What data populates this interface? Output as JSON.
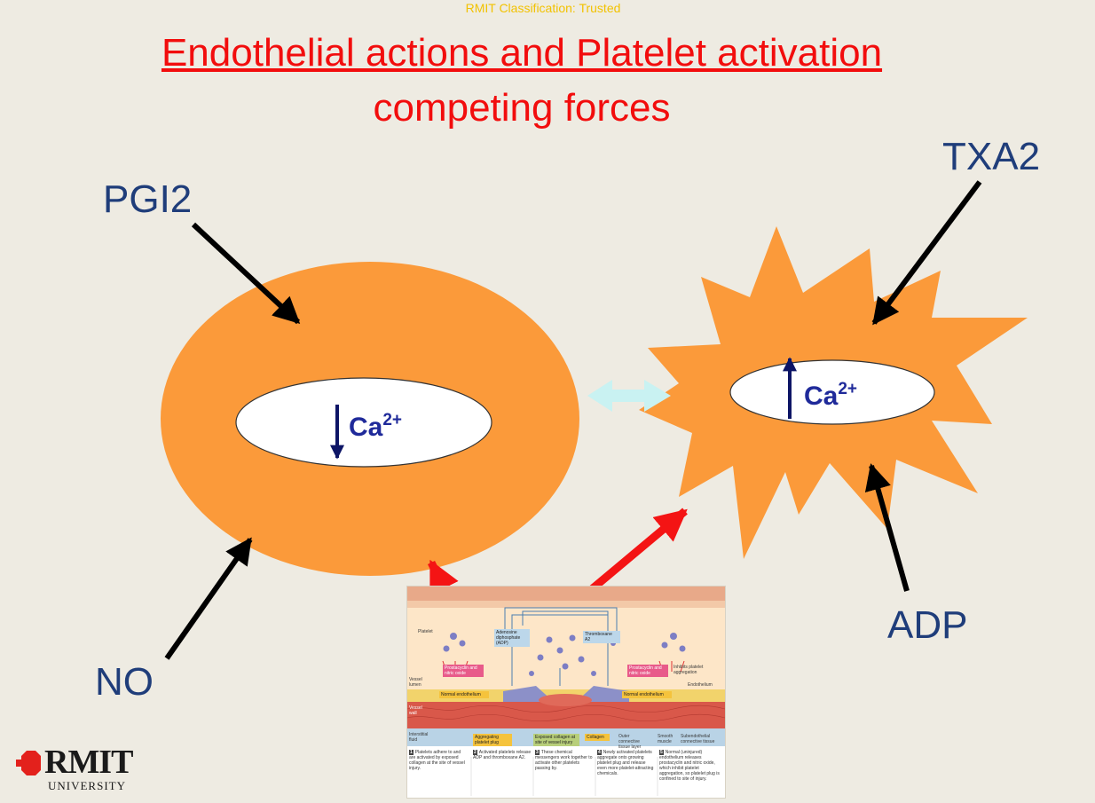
{
  "classification": "RMIT Classification: Trusted",
  "title": "Endothelial actions and Platelet activation",
  "subtitle": "competing  forces",
  "labels": {
    "pgi2": "PGI2",
    "txa2": "TXA2",
    "no": "NO",
    "adp": "ADP"
  },
  "cells": {
    "left": {
      "ion": "Ca",
      "charge": "2+",
      "direction": "down"
    },
    "right": {
      "ion": "Ca",
      "charge": "2+",
      "direction": "up"
    }
  },
  "inset": {
    "platelet": "Platelet",
    "adp": "Adenosine diphosphate (ADP)",
    "thromboxane": "Thromboxane A2",
    "prostacyclin_left": "Prostacyclin and nitric oxide",
    "prostacyclin_right": "Prostacyclin and nitric oxide",
    "inhibits": "Inhibits platelet aggregation",
    "vessel_lumen": "Vessel lumen",
    "endothelium": "Endothelium",
    "normal_endothelium_left": "Normal endothelium",
    "normal_endothelium_right": "Normal endothelium",
    "vessel_wall": "Vessel wall",
    "interstitial": "Interstitial fluid",
    "aggregating": "Aggregating platelet plug",
    "exposed": "Exposed collagen at site of vessel injury",
    "collagen": "Collagen",
    "outer": "Outer connective tissue layer",
    "smooth": "Smooth muscle",
    "subendothelial": "Subendothelial connective tissue",
    "steps": [
      {
        "n": "1",
        "text": "Platelets adhere to and are activated by exposed collagen at the site of vessel injury."
      },
      {
        "n": "2",
        "text": "Activated platelets release ADP and thromboxane A2."
      },
      {
        "n": "3",
        "text": "These chemical messengers work together to activate other platelets passing by."
      },
      {
        "n": "4",
        "text": "Newly activated platelets aggregate onto growing platelet plug and release even more platelet-attracting chemicals."
      },
      {
        "n": "5",
        "text": "Normal (uninjured) endothelium releases prostacyclin and nitric oxide, which inhibit platelet aggregation, so platelet plug is confined to site of injury."
      }
    ]
  },
  "logo": {
    "word": "RMIT",
    "sub": "UNIVERSITY"
  },
  "colors": {
    "background": "#eeebe2",
    "title": "#f20d0d",
    "label": "#1f3d7a",
    "cell": "#fb9a3a",
    "arrow_black": "#000000",
    "arrow_red": "#f41414",
    "arrow_cyan": "#c9f2f2",
    "ion": "#1f2a9a"
  }
}
